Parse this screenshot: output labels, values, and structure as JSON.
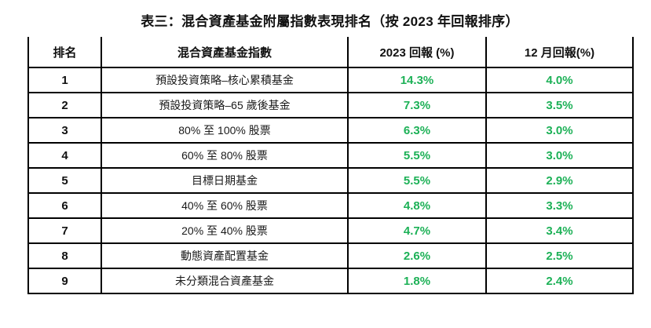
{
  "title": "表三：混合資產基金附屬指數表現排名（按 2023 年回報排序）",
  "colors": {
    "positive_return_green": "#1db157",
    "border_black": "#000000",
    "background": "#ffffff"
  },
  "table": {
    "headers": [
      "排名",
      "混合資產基金指數",
      "2023 回報 (%)",
      "12 月回報(%)"
    ],
    "rows": [
      {
        "rank": "1",
        "index_name": "預設投資策略–核心累積基金",
        "return_2023": "14.3%",
        "return_dec": "4.0%"
      },
      {
        "rank": "2",
        "index_name": "預設投資策略–65 歲後基金",
        "return_2023": "7.3%",
        "return_dec": "3.5%"
      },
      {
        "rank": "3",
        "index_name": "80% 至 100% 股票",
        "return_2023": "6.3%",
        "return_dec": "3.0%"
      },
      {
        "rank": "4",
        "index_name": "60% 至 80% 股票",
        "return_2023": "5.5%",
        "return_dec": "3.0%"
      },
      {
        "rank": "5",
        "index_name": "目標日期基金",
        "return_2023": "5.5%",
        "return_dec": "2.9%"
      },
      {
        "rank": "6",
        "index_name": "40% 至 60% 股票",
        "return_2023": "4.8%",
        "return_dec": "3.3%"
      },
      {
        "rank": "7",
        "index_name": "20% 至 40% 股票",
        "return_2023": "4.7%",
        "return_dec": "3.4%"
      },
      {
        "rank": "8",
        "index_name": "動態資產配置基金",
        "return_2023": "2.6%",
        "return_dec": "2.5%"
      },
      {
        "rank": "9",
        "index_name": "未分類混合資產基金",
        "return_2023": "1.8%",
        "return_dec": "2.4%"
      }
    ]
  }
}
